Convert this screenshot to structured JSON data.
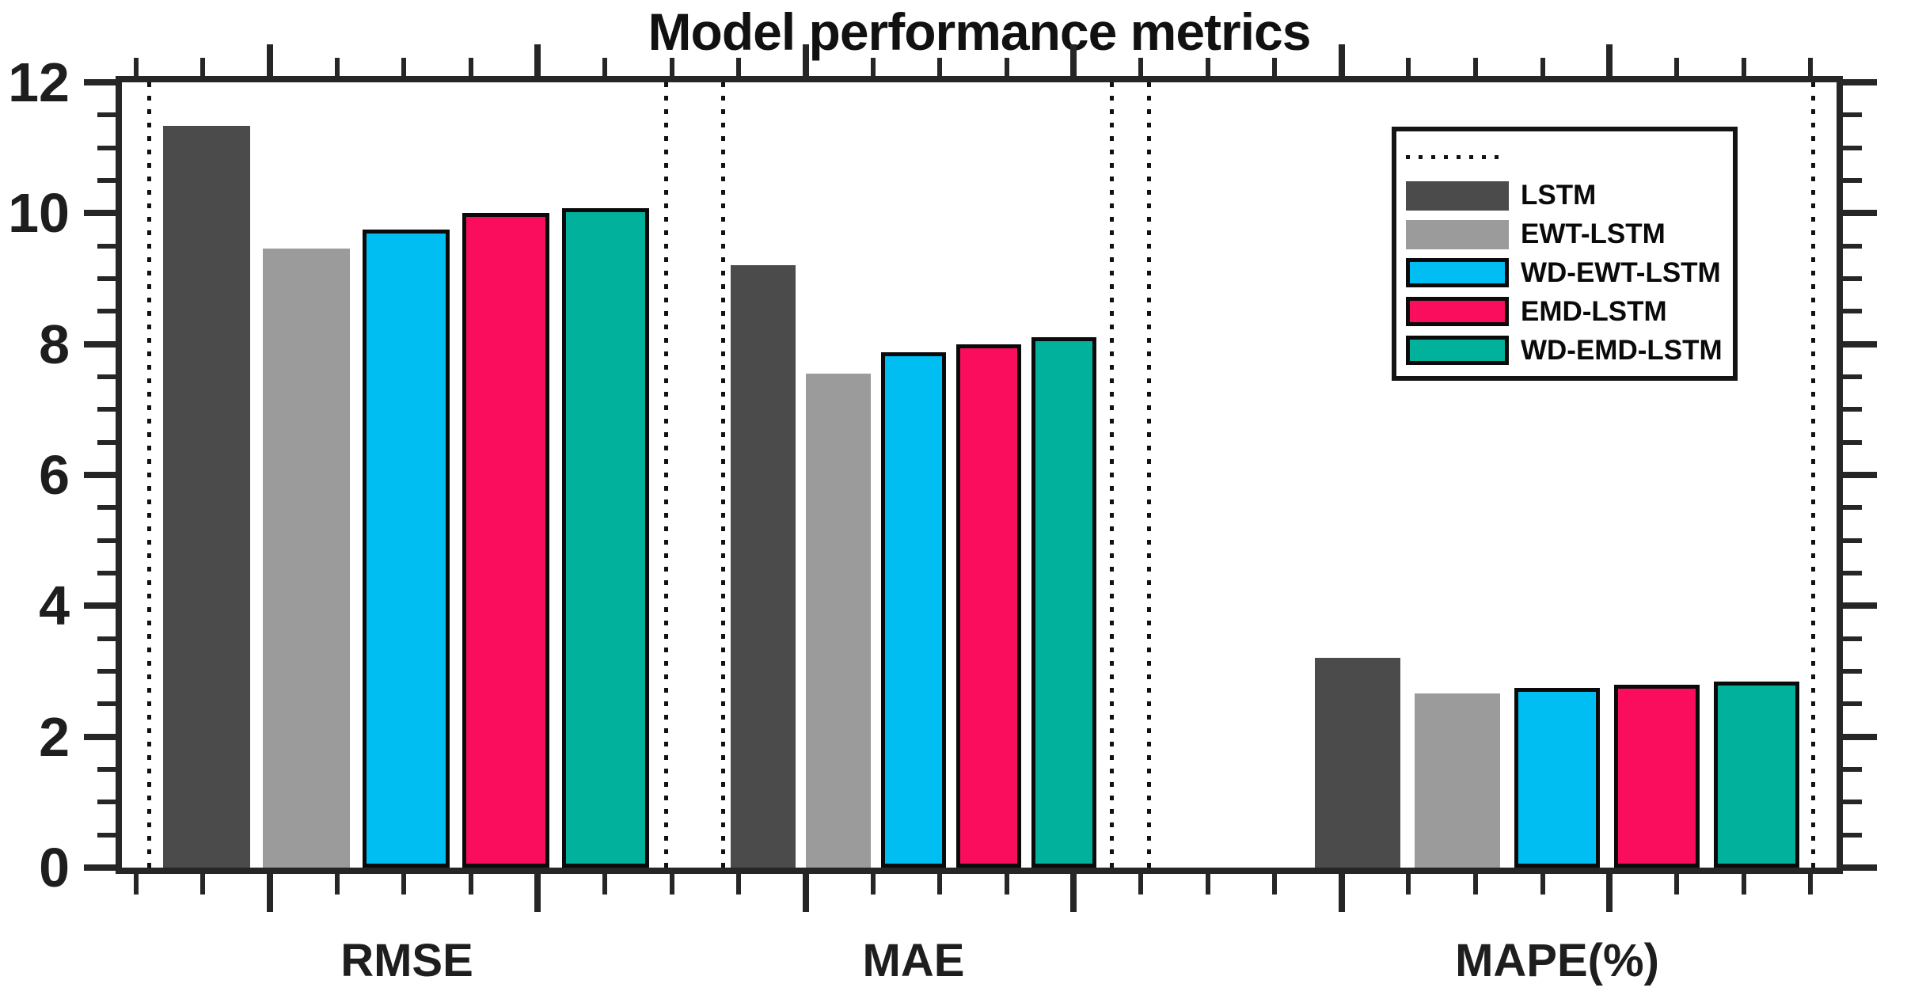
{
  "chart_data": {
    "type": "bar",
    "title": "Model performance metrics",
    "categories": [
      "RMSE",
      "MAE",
      "MAPE(%)"
    ],
    "series": [
      {
        "name": "LSTM",
        "color": "#4B4B4B",
        "outlined": false,
        "values": [
          11.33,
          9.2,
          3.2
        ]
      },
      {
        "name": "EWT-LSTM",
        "color": "#9B9B9B",
        "outlined": false,
        "values": [
          9.46,
          7.55,
          2.66
        ]
      },
      {
        "name": "WD-EWT-LSTM",
        "color": "#00BEF2",
        "outlined": true,
        "values": [
          9.75,
          7.87,
          2.75
        ]
      },
      {
        "name": "EMD-LSTM",
        "color": "#FB0D5E",
        "outlined": true,
        "values": [
          10.0,
          8.0,
          2.8
        ]
      },
      {
        "name": "WD-EMD-LSTM",
        "color": "#01B19B",
        "outlined": true,
        "values": [
          10.08,
          8.1,
          2.84
        ]
      }
    ],
    "ylim": [
      0,
      12
    ],
    "yticks": [
      0,
      2,
      4,
      6,
      8,
      10,
      12
    ],
    "minor_tick_step": 0.5,
    "grid": false,
    "legend": {
      "position": "upper right",
      "dotted_entry_label": ""
    },
    "separators": "dotted vertical lines flanking each metric group",
    "axis_color": "#262626",
    "background": "#FFFFFF"
  }
}
